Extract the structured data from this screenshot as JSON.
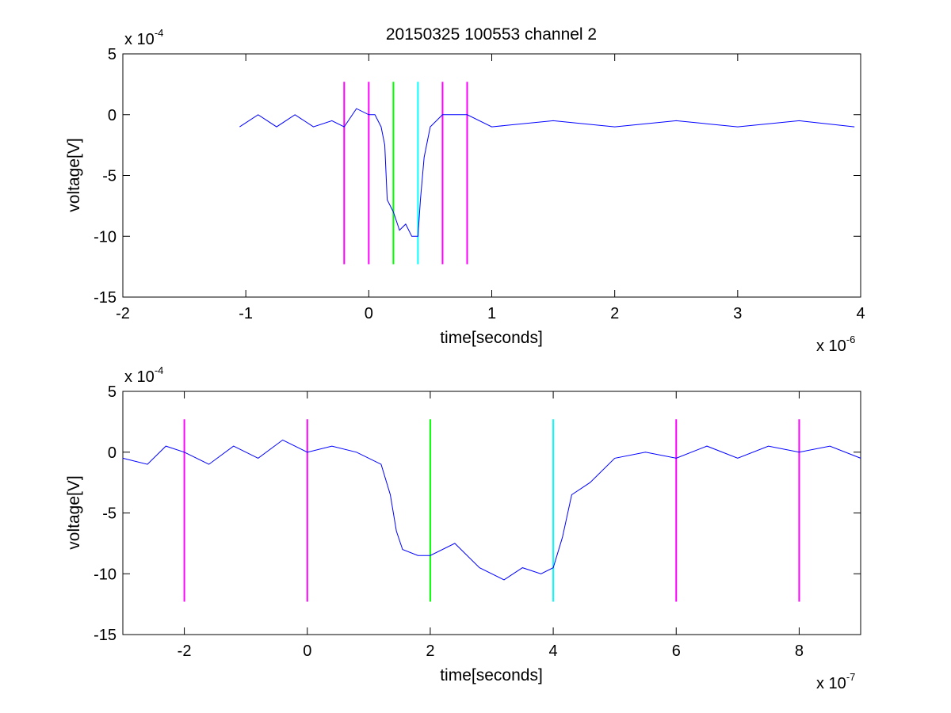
{
  "figure": {
    "title": "20150325 100553 channel 2",
    "colors": {
      "signal": "#0000ff",
      "marker_magenta": "#ff00ff",
      "marker_green": "#00ff00",
      "marker_cyan": "#00ffff",
      "axes": "#000000"
    }
  },
  "chart_data": [
    {
      "type": "line",
      "title": "20150325 100553 channel 2",
      "xlabel": "time[seconds]",
      "ylabel": "voltage[V]",
      "x_multiplier": "x 10",
      "x_exponent": "-6",
      "y_multiplier": "x 10",
      "y_exponent": "-4",
      "xlim": [
        -2,
        4
      ],
      "ylim": [
        -15,
        5
      ],
      "xticks": [
        -2,
        -1,
        0,
        1,
        2,
        3,
        4
      ],
      "xtick_labels": [
        "-2",
        "-1",
        "0",
        "1",
        "2",
        "3",
        "4"
      ],
      "yticks": [
        -15,
        -10,
        -5,
        0,
        5
      ],
      "ytick_labels": [
        "-15",
        "-10",
        "-5",
        "0",
        "5"
      ],
      "grid": false,
      "series": [
        {
          "color": "#0000ff",
          "x": [
            -1.05,
            -0.9,
            -0.75,
            -0.6,
            -0.45,
            -0.3,
            -0.2,
            -0.1,
            0.0,
            0.05,
            0.1,
            0.13,
            0.15,
            0.2,
            0.25,
            0.3,
            0.35,
            0.4,
            0.42,
            0.45,
            0.5,
            0.6,
            0.8,
            1.0,
            1.5,
            2.0,
            2.5,
            3.0,
            3.5,
            3.95
          ],
          "y": [
            -1,
            0,
            -1,
            0,
            -1,
            -0.5,
            -1,
            0.5,
            0,
            0,
            -1,
            -2.5,
            -7,
            -8,
            -9.5,
            -9,
            -10,
            -10,
            -7,
            -3.5,
            -1,
            0,
            0,
            -1,
            -0.5,
            -1,
            -0.5,
            -1,
            -0.5,
            -1
          ]
        }
      ],
      "markers": [
        {
          "x": -0.2,
          "color": "#ff00ff",
          "y_range": [
            -12.3,
            2.7
          ]
        },
        {
          "x": 0.0,
          "color": "#ff00ff",
          "y_range": [
            -12.3,
            2.7
          ]
        },
        {
          "x": 0.2,
          "color": "#00ff00",
          "y_range": [
            -12.3,
            2.7
          ]
        },
        {
          "x": 0.4,
          "color": "#00ffff",
          "y_range": [
            -12.3,
            2.7
          ]
        },
        {
          "x": 0.6,
          "color": "#ff00ff",
          "y_range": [
            -12.3,
            2.7
          ]
        },
        {
          "x": 0.8,
          "color": "#ff00ff",
          "y_range": [
            -12.3,
            2.7
          ]
        }
      ]
    },
    {
      "type": "line",
      "title": "",
      "xlabel": "time[seconds]",
      "ylabel": "voltage[V]",
      "x_multiplier": "x 10",
      "x_exponent": "-7",
      "y_multiplier": "x 10",
      "y_exponent": "-4",
      "xlim": [
        -3,
        9
      ],
      "ylim": [
        -15,
        5
      ],
      "xticks": [
        -2,
        0,
        2,
        4,
        6,
        8
      ],
      "xtick_labels": [
        "-2",
        "0",
        "2",
        "4",
        "6",
        "8"
      ],
      "yticks": [
        -15,
        -10,
        -5,
        0,
        5
      ],
      "ytick_labels": [
        "-15",
        "-10",
        "-5",
        "0",
        "5"
      ],
      "grid": false,
      "series": [
        {
          "color": "#0000ff",
          "x": [
            -3.0,
            -2.6,
            -2.3,
            -2.0,
            -1.6,
            -1.2,
            -0.8,
            -0.4,
            0.0,
            0.4,
            0.8,
            1.2,
            1.35,
            1.45,
            1.55,
            1.8,
            2.0,
            2.4,
            2.8,
            3.2,
            3.5,
            3.8,
            4.0,
            4.15,
            4.3,
            4.6,
            5.0,
            5.5,
            6.0,
            6.5,
            7.0,
            7.5,
            8.0,
            8.5,
            9.0
          ],
          "y": [
            -0.5,
            -1,
            0.5,
            0,
            -1,
            0.5,
            -0.5,
            1,
            0,
            0.5,
            0,
            -1,
            -3.5,
            -6.5,
            -8,
            -8.5,
            -8.5,
            -7.5,
            -9.5,
            -10.5,
            -9.5,
            -10,
            -9.5,
            -7,
            -3.5,
            -2.5,
            -0.5,
            0,
            -0.5,
            0.5,
            -0.5,
            0.5,
            0,
            0.5,
            -0.5
          ]
        }
      ],
      "markers": [
        {
          "x": -2,
          "color": "#ff00ff",
          "y_range": [
            -12.3,
            2.7
          ]
        },
        {
          "x": 0,
          "color": "#ff00ff",
          "y_range": [
            -12.3,
            2.7
          ]
        },
        {
          "x": 2,
          "color": "#00ff00",
          "y_range": [
            -12.3,
            2.7
          ]
        },
        {
          "x": 4,
          "color": "#00ffff",
          "y_range": [
            -12.3,
            2.7
          ]
        },
        {
          "x": 6,
          "color": "#ff00ff",
          "y_range": [
            -12.3,
            2.7
          ]
        },
        {
          "x": 8,
          "color": "#ff00ff",
          "y_range": [
            -12.3,
            2.7
          ]
        }
      ]
    }
  ]
}
